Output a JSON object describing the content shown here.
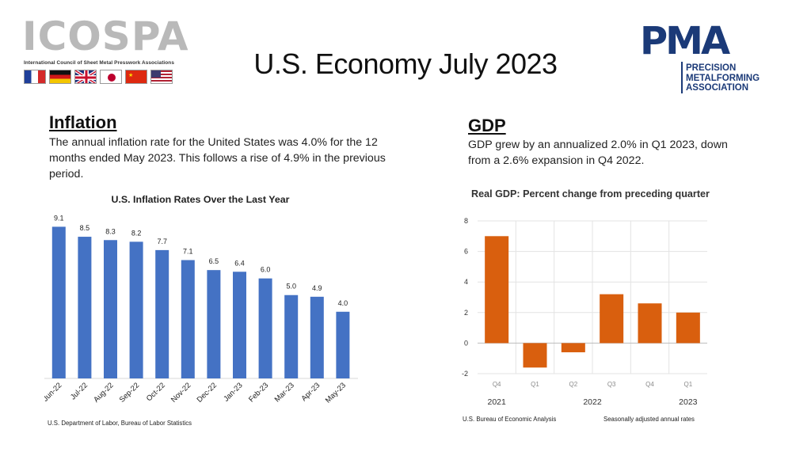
{
  "header": {
    "title": "U.S. Economy July 2023",
    "left_logo": {
      "name": "ICOSPA",
      "subtitle": "International Council of Sheet Metal Presswork Associations",
      "flags": [
        "france-flag",
        "germany-flag",
        "uk-flag",
        "japan-flag",
        "china-flag",
        "usa-flag"
      ]
    },
    "right_logo": {
      "name": "PMA",
      "subtitle_lines": [
        "PRECISION",
        "METALFORMING",
        "ASSOCIATION"
      ]
    }
  },
  "inflation": {
    "heading": "Inflation",
    "text": "The annual inflation rate for the United States was 4.0% for the 12 months ended May 2023. This follows a rise of 4.9% in the previous period.",
    "source": "U.S. Department of Labor, Bureau of Labor Statistics"
  },
  "gdp": {
    "heading": "GDP",
    "text": "GDP grew by an annualized 2.0% in Q1 2023, down from a 2.6% expansion in Q4 2022.",
    "source_left": "U.S. Bureau of Economic Analysis",
    "source_right": "Seasonally adjusted annual rates"
  },
  "chart_data": [
    {
      "type": "bar",
      "title": "U.S. Inflation Rates Over the Last Year",
      "categories": [
        "Jun-22",
        "Jul-22",
        "Aug-22",
        "Sep-22",
        "Oct-22",
        "Nov-22",
        "Dec-22",
        "Jan-23",
        "Feb-23",
        "Mar-23",
        "Apr-23",
        "May-23"
      ],
      "values": [
        9.1,
        8.5,
        8.3,
        8.2,
        7.7,
        7.1,
        6.5,
        6.4,
        6.0,
        5.0,
        4.9,
        4.0
      ],
      "data_labels": [
        "9.1",
        "8.5",
        "8.3",
        "8.2",
        "7.7",
        "7.1",
        "6.5",
        "6.4",
        "6.0",
        "5.0",
        "4.9",
        "4.0"
      ],
      "xlabel": "",
      "ylabel": "",
      "ylim": [
        0,
        9.5
      ],
      "grid": false,
      "colors": {
        "bar": "#4472c4"
      }
    },
    {
      "type": "bar",
      "title": "Real GDP:  Percent change from preceding quarter",
      "categories": [
        "Q4",
        "Q1",
        "Q2",
        "Q3",
        "Q4",
        "Q1"
      ],
      "years": [
        {
          "label": "2021",
          "span": [
            0,
            0
          ]
        },
        {
          "label": "2022",
          "span": [
            1,
            4
          ]
        },
        {
          "label": "2023",
          "span": [
            5,
            5
          ]
        }
      ],
      "values": [
        7.0,
        -1.6,
        -0.6,
        3.2,
        2.6,
        2.0
      ],
      "yticks": [
        "8",
        "6",
        "4",
        "2",
        "0",
        "-2"
      ],
      "ylim": [
        -2,
        8
      ],
      "grid": true,
      "colors": {
        "bar": "#d95f0e",
        "grid": "#e3e3e3"
      }
    }
  ]
}
